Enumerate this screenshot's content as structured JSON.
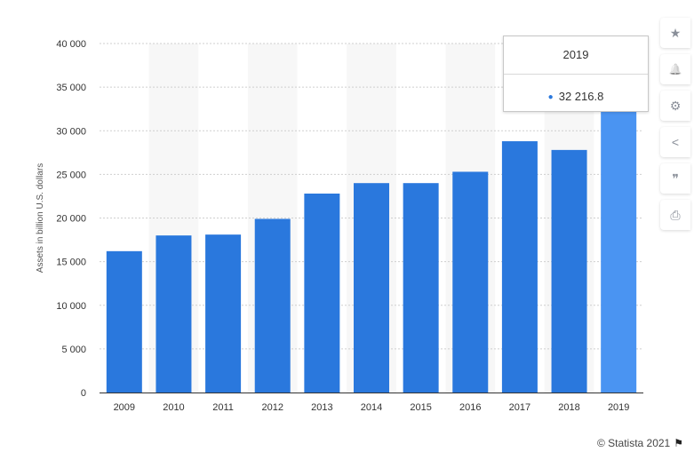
{
  "chart_data": {
    "type": "bar",
    "categories": [
      "2009",
      "2010",
      "2011",
      "2012",
      "2013",
      "2014",
      "2015",
      "2016",
      "2017",
      "2018",
      "2019"
    ],
    "values": [
      16200,
      18000,
      18100,
      19900,
      22800,
      24000,
      24000,
      25300,
      28800,
      27800,
      32216.8
    ],
    "ylabel": "Assets in billion U.S. dollars",
    "xlabel": "",
    "ylim": [
      0,
      40000
    ],
    "yticks": [
      "0",
      "5 000",
      "10 000",
      "15 000",
      "20 000",
      "25 000",
      "30 000",
      "35 000",
      "40 000"
    ],
    "grid": true,
    "highlighted_category": "2019",
    "colors": {
      "bar": "#2a78dd",
      "bar_highlight": "#4a94f2",
      "band": "#f7f7f7"
    }
  },
  "tooltip": {
    "title": "2019",
    "value": "32 216.8"
  },
  "sidebar": {
    "buttons": [
      {
        "icon": "star-icon",
        "glyph": "★"
      },
      {
        "icon": "bell-icon",
        "glyph": "🔔"
      },
      {
        "icon": "gear-icon",
        "glyph": "⚙"
      },
      {
        "icon": "share-icon",
        "glyph": "<"
      },
      {
        "icon": "quote-icon",
        "glyph": "❞"
      },
      {
        "icon": "print-icon",
        "glyph": "⎙"
      }
    ]
  },
  "footer": {
    "copyright": "© Statista 2021"
  }
}
